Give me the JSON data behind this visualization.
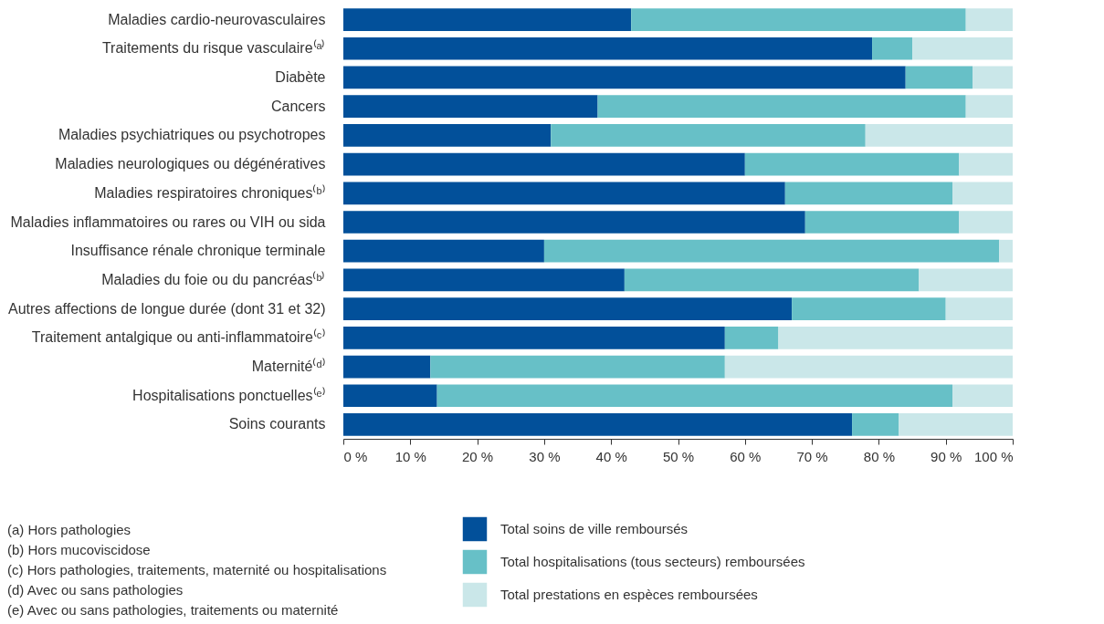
{
  "chart_data": {
    "type": "bar",
    "orientation": "horizontal",
    "stacked": true,
    "categories": [
      "Maladies cardio-neurovasculaires",
      "Traitements du risque vasculaire⁽ᵃ⁾",
      "Diabète",
      "Cancers",
      "Maladies psychiatriques ou psychotropes",
      "Maladies neurologiques ou dégénératives",
      "Maladies respiratoires chroniques⁽ᵇ⁾",
      "Maladies inflammatoires ou rares ou VIH ou sida",
      "Insuffisance rénale chronique terminale",
      "Maladies du foie ou du pancréas⁽ᵇ⁾",
      "Autres affections de longue durée (dont 31 et 32)",
      "Traitement antalgique ou anti-inflammatoire⁽ᶜ⁾",
      "Maternité⁽ᵈ⁾",
      "Hospitalisations ponctuelles⁽ᵉ⁾",
      "Soins courants"
    ],
    "series": [
      {
        "name": "Total soins de ville remboursés",
        "color": "#02509a",
        "values": [
          43,
          79,
          84,
          38,
          31,
          60,
          66,
          69,
          30,
          42,
          67,
          57,
          13,
          14,
          76
        ]
      },
      {
        "name": "Total hospitalisations (tous secteurs) remboursées",
        "color": "#67c0c7",
        "values": [
          50,
          6,
          10,
          55,
          47,
          32,
          25,
          23,
          68,
          44,
          23,
          8,
          44,
          77,
          7
        ]
      },
      {
        "name": "Total prestations en espèces remboursées",
        "color": "#cae7e9",
        "values": [
          7,
          15,
          6,
          7,
          22,
          8,
          9,
          8,
          2,
          14,
          10,
          35,
          43,
          9,
          17
        ]
      }
    ],
    "xlim": [
      0,
      100
    ],
    "xticks": [
      {
        "value": 0,
        "label": "0 %"
      },
      {
        "value": 10,
        "label": "10 %"
      },
      {
        "value": 20,
        "label": "20 %"
      },
      {
        "value": 30,
        "label": "30 %"
      },
      {
        "value": 40,
        "label": "40 %"
      },
      {
        "value": 50,
        "label": "50 %"
      },
      {
        "value": 60,
        "label": "60 %"
      },
      {
        "value": 70,
        "label": "70 %"
      },
      {
        "value": 80,
        "label": "80 %"
      },
      {
        "value": 90,
        "label": "90 %"
      },
      {
        "value": 100,
        "label": "100 %"
      }
    ],
    "grid": false,
    "legend": "bottom",
    "annotations": [
      "(a) Hors pathologies",
      "(b) Hors mucoviscidose",
      "(c) Hors pathologies, traitements, maternité ou hospitalisations",
      "(d) Avec ou sans pathologies",
      "(e) Avec ou sans pathologies, traitements ou maternité"
    ]
  }
}
